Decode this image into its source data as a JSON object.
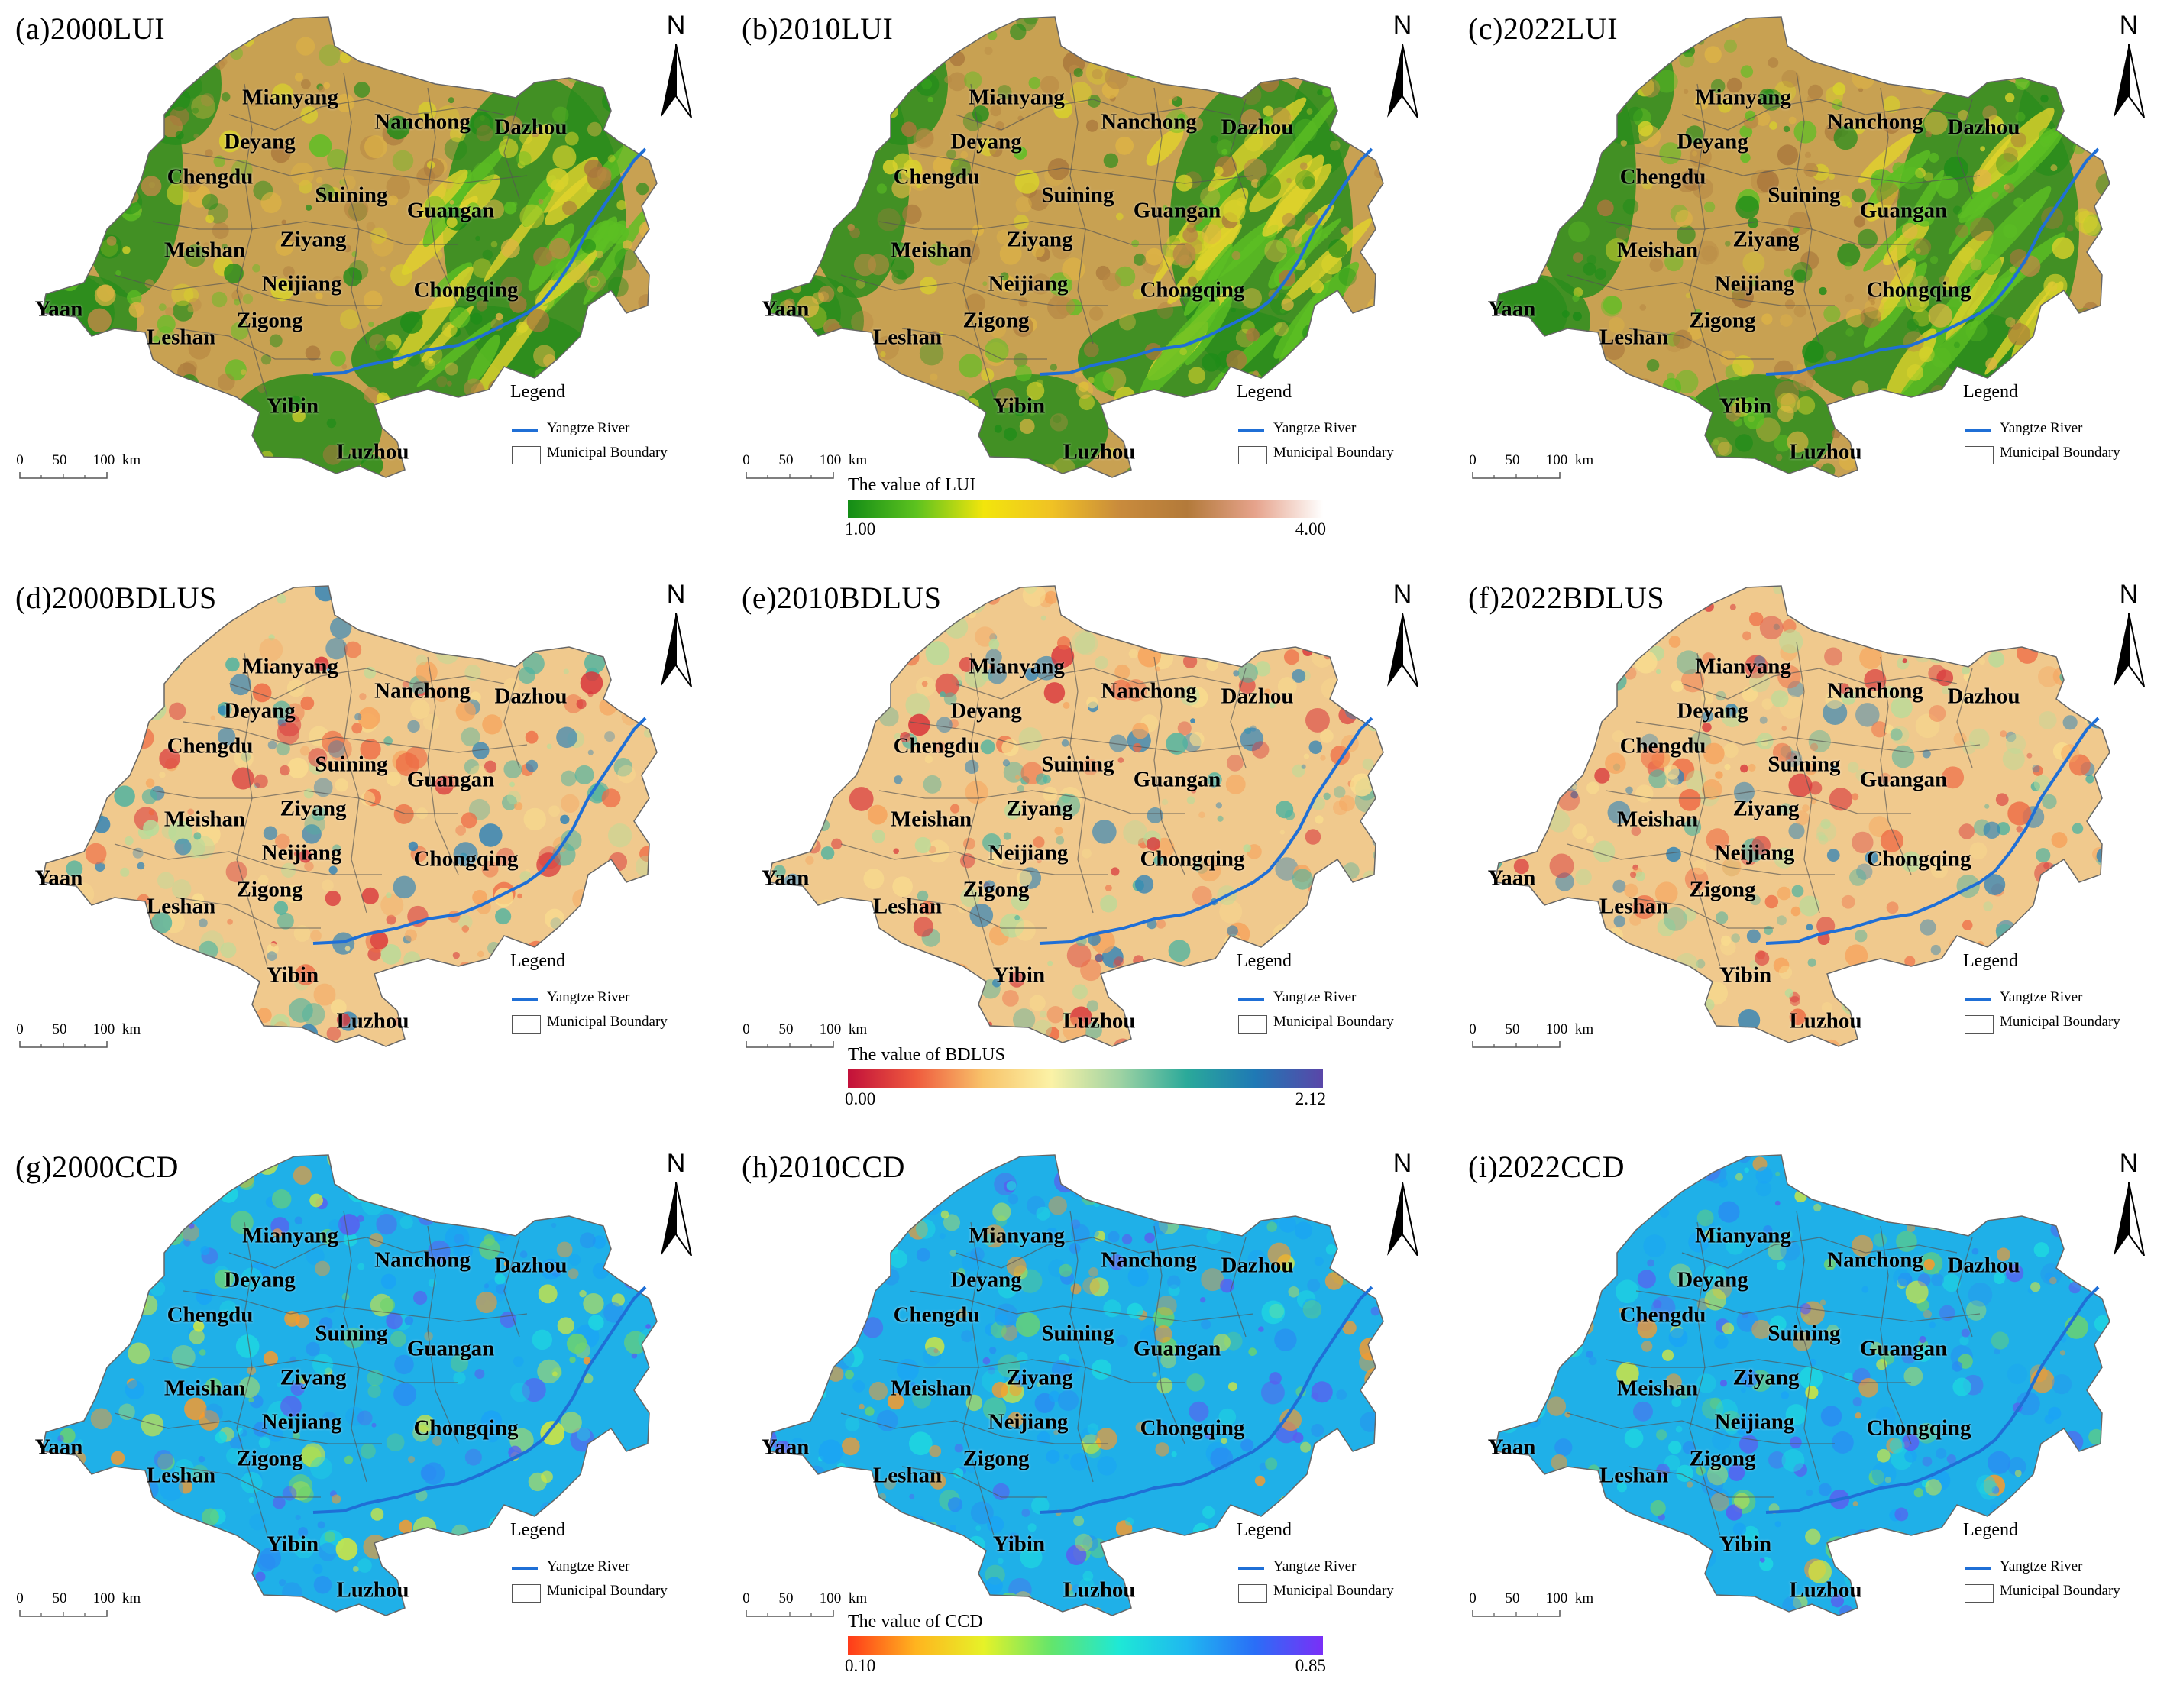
{
  "legend": {
    "title": "Legend",
    "river_label": "Yangtze River",
    "boundary_label": "Municipal Boundary",
    "river_color": "#1f6fd6"
  },
  "north_label": "N",
  "scale": {
    "labels": [
      "0",
      "50",
      "100",
      "km"
    ]
  },
  "cities": [
    "Mianyang",
    "Nanchong",
    "Dazhou",
    "Deyang",
    "Chengdu",
    "Suining",
    "Guangan",
    "Meishan",
    "Ziyang",
    "Neijiang",
    "Chongqing",
    "Yaan",
    "Leshan",
    "Zigong",
    "Yibin",
    "Luzhou"
  ],
  "panels": [
    {
      "title": "(a)2000LUI",
      "metric": "LUI"
    },
    {
      "title": "(b)2010LUI",
      "metric": "LUI"
    },
    {
      "title": "(c)2022LUI",
      "metric": "LUI"
    },
    {
      "title": "(d)2000BDLUS",
      "metric": "BDLUS"
    },
    {
      "title": "(e)2010BDLUS",
      "metric": "BDLUS"
    },
    {
      "title": "(f)2022BDLUS",
      "metric": "BDLUS"
    },
    {
      "title": "(g)2000CCD",
      "metric": "CCD"
    },
    {
      "title": "(h)2010CCD",
      "metric": "CCD"
    },
    {
      "title": "(i)2022CCD",
      "metric": "CCD"
    }
  ],
  "colorbars": [
    {
      "title": "The value of LUI",
      "min": "1.00",
      "max": "4.00",
      "colors": [
        "#138c16",
        "#5cc21f",
        "#f2e50c",
        "#f0c224",
        "#c98b3c",
        "#b37a3a",
        "#e6a38c",
        "#ffffff"
      ]
    },
    {
      "title": "The value of BDLUS",
      "min": "0.00",
      "max": "2.12",
      "colors": [
        "#c2103a",
        "#ef5b3e",
        "#f8c36a",
        "#fbf2a6",
        "#9fd3a3",
        "#2aa99a",
        "#1f79b5",
        "#5a46a8"
      ]
    },
    {
      "title": "The value of CCD",
      "min": "0.10",
      "max": "0.85",
      "colors": [
        "#ff3a1a",
        "#ffb41f",
        "#e6f228",
        "#63e56c",
        "#1ee8d6",
        "#1fb7f0",
        "#2a6ef7",
        "#7a2ff7"
      ]
    }
  ]
}
